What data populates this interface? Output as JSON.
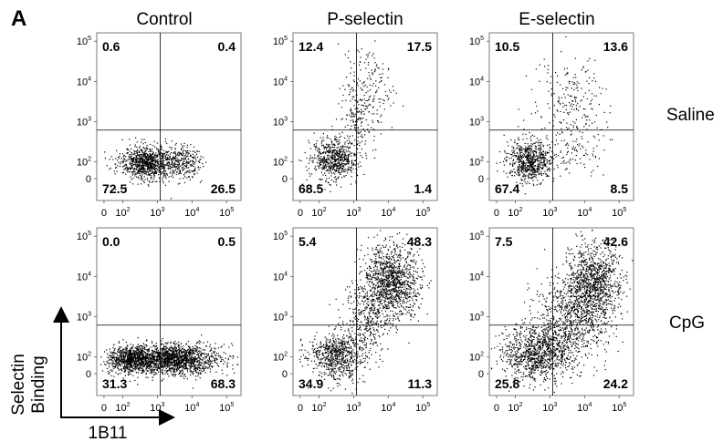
{
  "panel_label": "A",
  "columns": [
    "Control",
    "P-selectin",
    "E-selectin"
  ],
  "rows": [
    "Saline",
    "CpG"
  ],
  "axis_labels": {
    "x": "1B11",
    "y_line1": "Selectin",
    "y_line2": "Binding"
  },
  "chart_data": [
    {
      "type": "scatter",
      "column": "Control",
      "row": "Saline",
      "quadrants_percent": {
        "upper_left": 0.6,
        "upper_right": 0.4,
        "lower_left": 72.5,
        "lower_right": 26.5
      },
      "xlim": [
        0,
        100000
      ],
      "ylim": [
        0,
        100000
      ],
      "scale": "logicle"
    },
    {
      "type": "scatter",
      "column": "P-selectin",
      "row": "Saline",
      "quadrants_percent": {
        "upper_left": 12.4,
        "upper_right": 17.5,
        "lower_left": 68.5,
        "lower_right": 1.4
      },
      "xlim": [
        0,
        100000
      ],
      "ylim": [
        0,
        100000
      ],
      "scale": "logicle"
    },
    {
      "type": "scatter",
      "column": "E-selectin",
      "row": "Saline",
      "quadrants_percent": {
        "upper_left": 10.5,
        "upper_right": 13.6,
        "lower_left": 67.4,
        "lower_right": 8.5
      },
      "xlim": [
        0,
        100000
      ],
      "ylim": [
        0,
        100000
      ],
      "scale": "logicle"
    },
    {
      "type": "scatter",
      "column": "Control",
      "row": "CpG",
      "quadrants_percent": {
        "upper_left": 0.0,
        "upper_right": 0.5,
        "lower_left": 31.3,
        "lower_right": 68.3
      },
      "xlim": [
        0,
        100000
      ],
      "ylim": [
        0,
        100000
      ],
      "scale": "logicle"
    },
    {
      "type": "scatter",
      "column": "P-selectin",
      "row": "CpG",
      "quadrants_percent": {
        "upper_left": 5.4,
        "upper_right": 48.3,
        "lower_left": 34.9,
        "lower_right": 11.3
      },
      "xlim": [
        0,
        100000
      ],
      "ylim": [
        0,
        100000
      ],
      "scale": "logicle"
    },
    {
      "type": "scatter",
      "column": "E-selectin",
      "row": "CpG",
      "quadrants_percent": {
        "upper_left": 7.5,
        "upper_right": 42.6,
        "lower_left": 25.8,
        "lower_right": 24.2
      },
      "xlim": [
        0,
        100000
      ],
      "ylim": [
        0,
        100000
      ],
      "scale": "logicle"
    }
  ],
  "ticks": {
    "x": [
      {
        "base": "0",
        "exp": ""
      },
      {
        "base": "10",
        "exp": "2"
      },
      {
        "base": "10",
        "exp": "3"
      },
      {
        "base": "10",
        "exp": "4"
      },
      {
        "base": "10",
        "exp": "5"
      }
    ],
    "y": [
      {
        "base": "10",
        "exp": "5"
      },
      {
        "base": "10",
        "exp": "4"
      },
      {
        "base": "10",
        "exp": "3"
      },
      {
        "base": "10",
        "exp": "2"
      },
      {
        "base": "0",
        "exp": ""
      }
    ]
  },
  "colors": {
    "dots": "#000000",
    "lines": "#000000",
    "background": "#ffffff"
  }
}
